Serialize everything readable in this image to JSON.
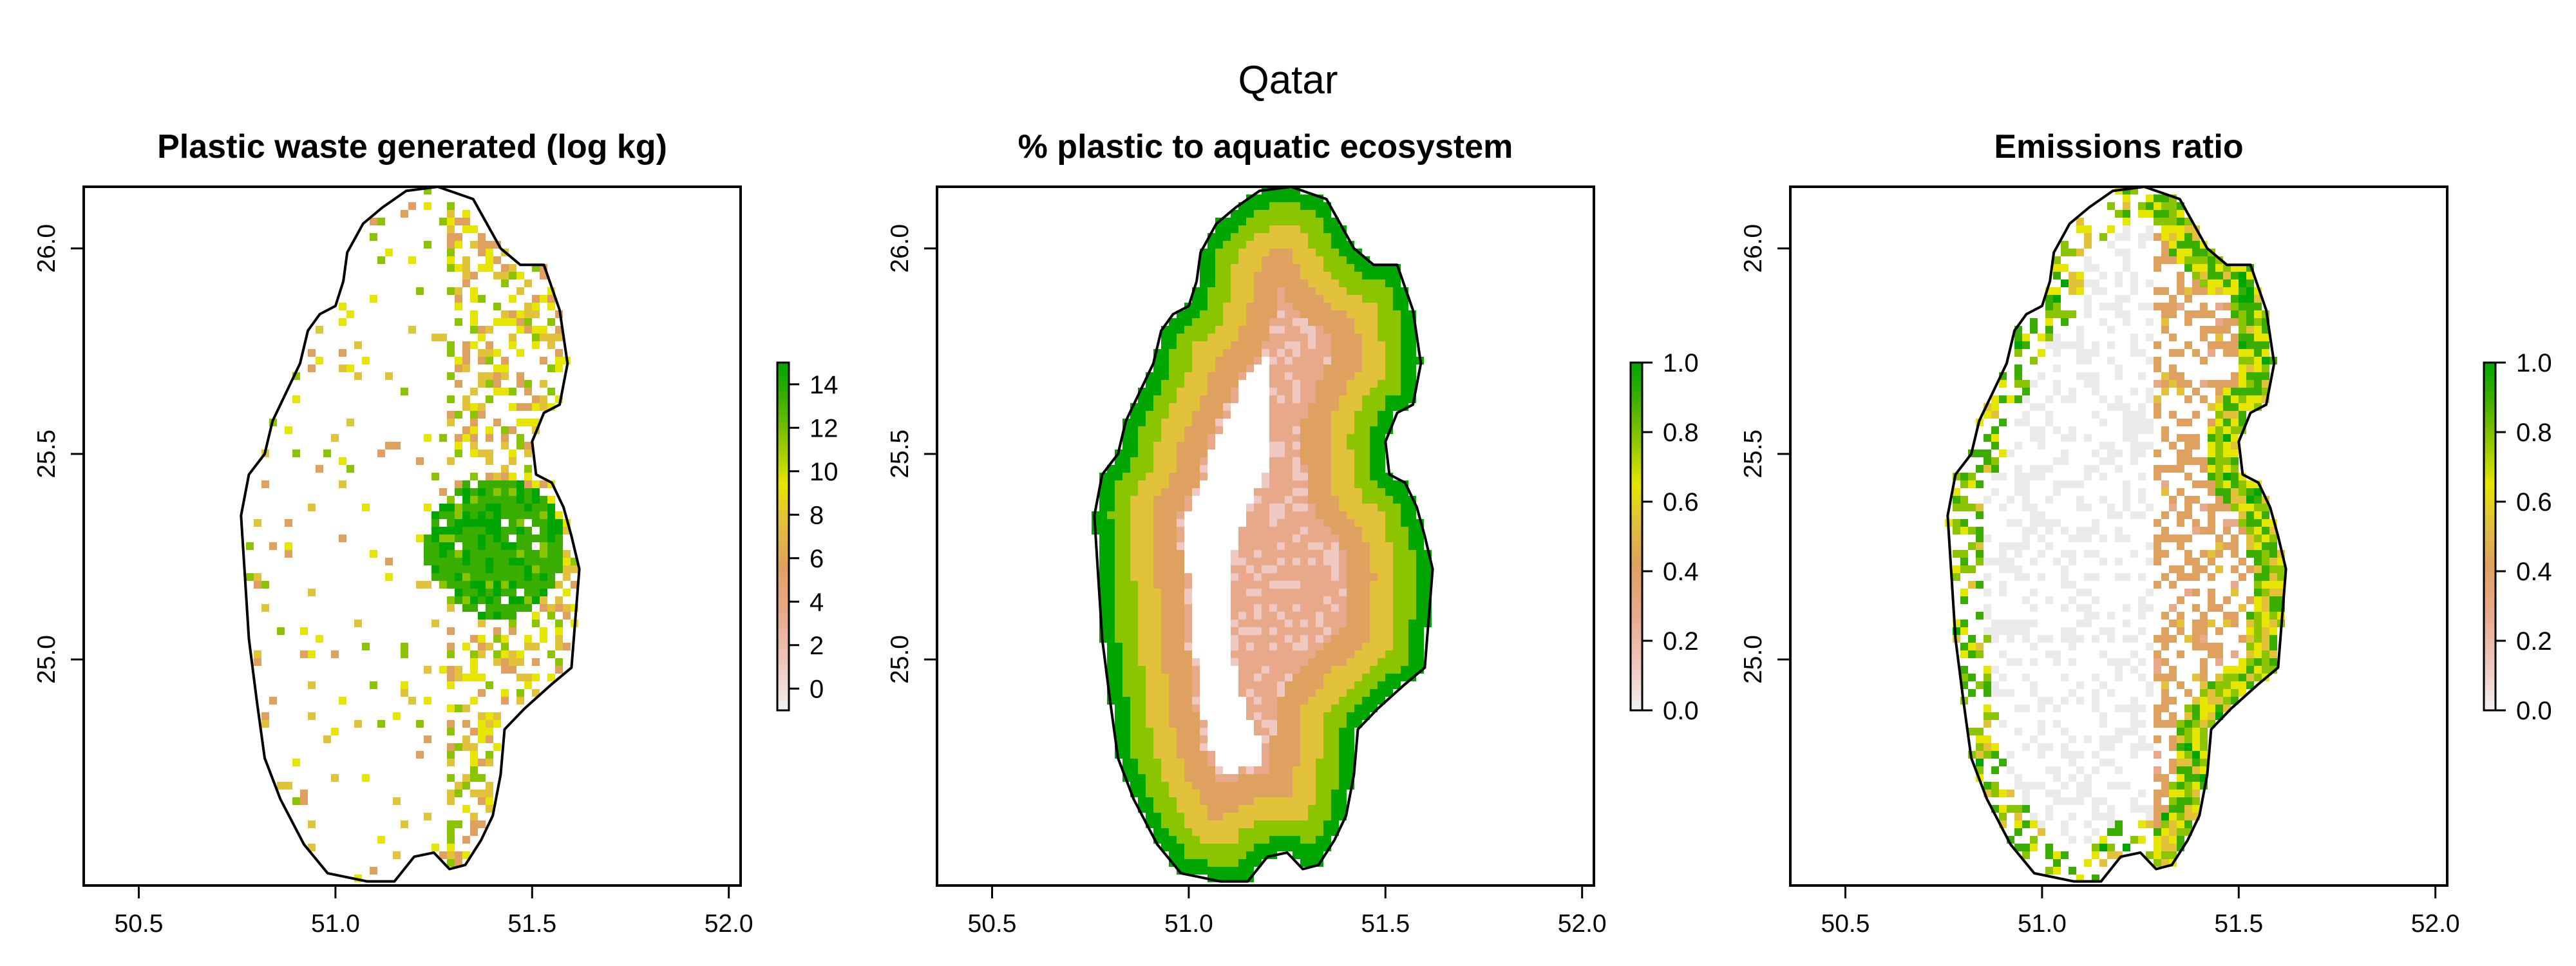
{
  "figure": {
    "title": "Qatar"
  },
  "panels": [
    {
      "id": "waste",
      "title": "Plastic waste generated (log kg)",
      "legend_ticks": [
        "14",
        "12",
        "10",
        "8",
        "6",
        "4",
        "2",
        "0"
      ],
      "value_range": [
        -1,
        15
      ],
      "pattern": "sparse-urban"
    },
    {
      "id": "aquatic",
      "title": "% plastic to aquatic ecosystem",
      "legend_ticks": [
        "1.0",
        "0.8",
        "0.6",
        "0.4",
        "0.2",
        "0.0"
      ],
      "value_range": [
        0,
        1
      ],
      "pattern": "coastal-gradient"
    },
    {
      "id": "emissions",
      "title": "Emissions ratio",
      "legend_ticks": [
        "1.0",
        "0.8",
        "0.6",
        "0.4",
        "0.2",
        "0.0"
      ],
      "value_range": [
        0,
        1
      ],
      "pattern": "sparse-coastal"
    }
  ],
  "axes": {
    "x_ticks": [
      "50.5",
      "51.0",
      "51.5",
      "52.0"
    ],
    "y_ticks": [
      "26.0",
      "25.5",
      "25.0"
    ],
    "xlim": [
      50.36,
      52.03
    ],
    "ylim": [
      24.45,
      26.15
    ]
  },
  "colors": {
    "palette": [
      "#F2F2F2",
      "#EFC9C1",
      "#E8A98B",
      "#DFA15F",
      "#E1C23A",
      "#E6E600",
      "#8BC400",
      "#3AAE00",
      "#00A600"
    ],
    "null_area": "#EBEBEB",
    "outline": "#000000"
  }
}
